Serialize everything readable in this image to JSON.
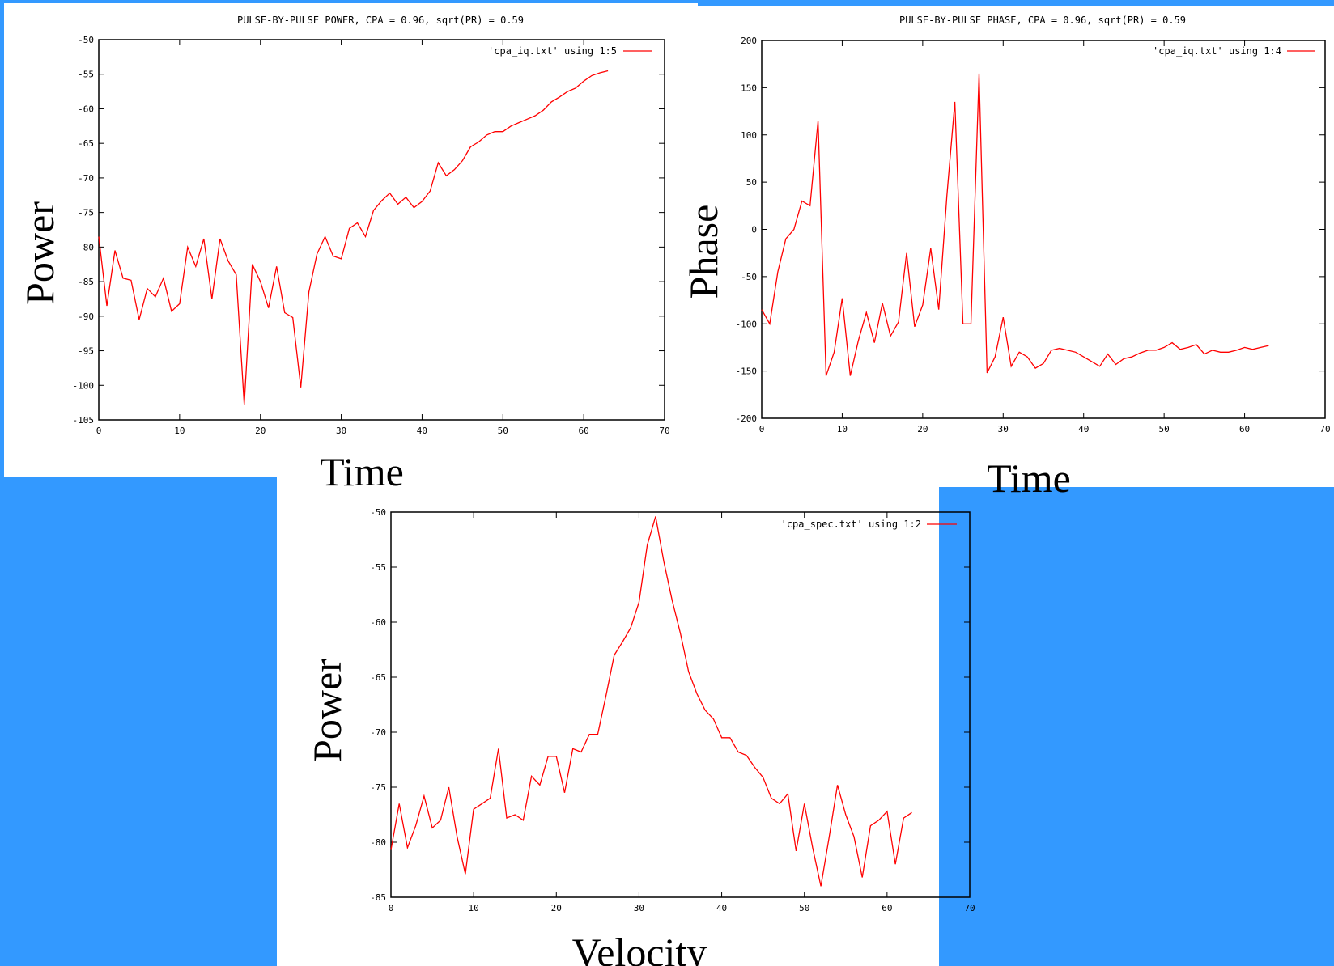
{
  "colors": {
    "background": "#3399ff",
    "panel": "#ffffff",
    "line": "#ff0000",
    "axis": "#000000"
  },
  "chart_data": [
    {
      "type": "line",
      "title": "PULSE-BY-PULSE POWER, CPA = 0.96, sqrt(PR) = 0.59",
      "xlabel": "Time",
      "ylabel": "Power",
      "xlim": [
        0,
        70
      ],
      "ylim": [
        -105,
        -50
      ],
      "xticks": [
        0,
        10,
        20,
        30,
        40,
        50,
        60,
        70
      ],
      "yticks": [
        -50,
        -55,
        -60,
        -65,
        -70,
        -75,
        -80,
        -85,
        -90,
        -95,
        -100,
        -105
      ],
      "grid": false,
      "legend_position": "top-right",
      "series": [
        {
          "name": "'cpa_iq.txt' using 1:5",
          "x": [
            0,
            1,
            2,
            3,
            4,
            5,
            6,
            7,
            8,
            9,
            10,
            11,
            12,
            13,
            14,
            15,
            16,
            17,
            18,
            19,
            20,
            21,
            22,
            23,
            24,
            25,
            26,
            27,
            28,
            29,
            30,
            31,
            32,
            33,
            34,
            35,
            36,
            37,
            38,
            39,
            40,
            41,
            42,
            43,
            44,
            45,
            46,
            47,
            48,
            49,
            50,
            51,
            52,
            53,
            54,
            55,
            56,
            57,
            58,
            59,
            60,
            61,
            62,
            63
          ],
          "y": [
            -78.5,
            -88.5,
            -80.5,
            -84.5,
            -84.8,
            -90.5,
            -86,
            -87.2,
            -84.5,
            -89.3,
            -88.2,
            -80,
            -82.8,
            -78.8,
            -87.5,
            -78.8,
            -82,
            -84,
            -102.8,
            -82.5,
            -85,
            -88.8,
            -82.8,
            -89.5,
            -90.2,
            -100.3,
            -86.5,
            -81,
            -78.5,
            -81.3,
            -81.7,
            -77.3,
            -76.5,
            -78.5,
            -74.7,
            -73.3,
            -72.2,
            -73.8,
            -72.8,
            -74.3,
            -73.4,
            -71.9,
            -67.8,
            -69.7,
            -68.8,
            -67.5,
            -65.5,
            -64.8,
            -63.8,
            -63.3,
            -63.3,
            -62.5,
            -62,
            -61.5,
            -61,
            -60.2,
            -59,
            -58.3,
            -57.5,
            -57,
            -56,
            -55.2,
            -54.8,
            -54.5
          ]
        }
      ]
    },
    {
      "type": "line",
      "title": "PULSE-BY-PULSE PHASE, CPA = 0.96, sqrt(PR) = 0.59",
      "xlabel": "Time",
      "ylabel": "Phase",
      "xlim": [
        0,
        70
      ],
      "ylim": [
        -200,
        200
      ],
      "xticks": [
        0,
        10,
        20,
        30,
        40,
        50,
        60,
        70
      ],
      "yticks": [
        200,
        150,
        100,
        50,
        0,
        -50,
        -100,
        -150,
        -200
      ],
      "grid": false,
      "legend_position": "top-right",
      "series": [
        {
          "name": "'cpa_iq.txt' using 1:4",
          "x": [
            0,
            1,
            2,
            3,
            4,
            5,
            6,
            7,
            8,
            9,
            10,
            11,
            12,
            13,
            14,
            15,
            16,
            17,
            18,
            19,
            20,
            21,
            22,
            23,
            24,
            25,
            26,
            27,
            28,
            29,
            30,
            31,
            32,
            33,
            34,
            35,
            36,
            37,
            38,
            39,
            40,
            41,
            42,
            43,
            44,
            45,
            46,
            47,
            48,
            49,
            50,
            51,
            52,
            53,
            54,
            55,
            56,
            57,
            58,
            59,
            60,
            61,
            62,
            63
          ],
          "y": [
            -85,
            -100,
            -45,
            -10,
            0,
            30,
            25,
            115,
            -155,
            -130,
            -73,
            -155,
            -118,
            -88,
            -120,
            -78,
            -113,
            -98,
            -25,
            -103,
            -80,
            -20,
            -85,
            35,
            135,
            -100,
            -100,
            165,
            -152,
            -135,
            -93,
            -145,
            -130,
            -135,
            -147,
            -142,
            -128,
            -126,
            -128,
            -130,
            -135,
            -140,
            -145,
            -132,
            -143,
            -137,
            -135,
            -131,
            -128,
            -128,
            -125,
            -120,
            -127,
            -125,
            -122,
            -132,
            -128,
            -130,
            -130,
            -128,
            -125,
            -127,
            -125,
            -123
          ]
        }
      ]
    },
    {
      "type": "line",
      "title": "",
      "xlabel": "Velocity",
      "ylabel": "Power",
      "xlim": [
        0,
        70
      ],
      "ylim": [
        -85,
        -50
      ],
      "xticks": [
        0,
        10,
        20,
        30,
        40,
        50,
        60,
        70
      ],
      "yticks": [
        -50,
        -55,
        -60,
        -65,
        -70,
        -75,
        -80,
        -85
      ],
      "grid": false,
      "legend_position": "top-right",
      "series": [
        {
          "name": "'cpa_spec.txt' using 1:2",
          "x": [
            0,
            1,
            2,
            3,
            4,
            5,
            6,
            7,
            8,
            9,
            10,
            11,
            12,
            13,
            14,
            15,
            16,
            17,
            18,
            19,
            20,
            21,
            22,
            23,
            24,
            25,
            26,
            27,
            28,
            29,
            30,
            31,
            32,
            33,
            34,
            35,
            36,
            37,
            38,
            39,
            40,
            41,
            42,
            43,
            44,
            45,
            46,
            47,
            48,
            49,
            50,
            51,
            52,
            53,
            54,
            55,
            56,
            57,
            58,
            59,
            60,
            61,
            62,
            63
          ],
          "y": [
            -80.7,
            -76.5,
            -80.5,
            -78.5,
            -75.8,
            -78.7,
            -78,
            -75,
            -79.5,
            -82.9,
            -77,
            -76.5,
            -76,
            -71.5,
            -77.8,
            -77.5,
            -78,
            -74,
            -74.8,
            -72.2,
            -72.2,
            -75.5,
            -71.5,
            -71.8,
            -70.2,
            -70.2,
            -66.7,
            -63,
            -61.8,
            -60.5,
            -58.2,
            -53,
            -50.4,
            -54.5,
            -58,
            -61,
            -64.5,
            -66.5,
            -68,
            -68.8,
            -70.5,
            -70.5,
            -71.8,
            -72.1,
            -73.2,
            -74.1,
            -76,
            -76.5,
            -75.6,
            -80.8,
            -76.5,
            -80.5,
            -84,
            -79.5,
            -74.8,
            -77.5,
            -79.5,
            -83.2,
            -78.5,
            -78,
            -77.2,
            -82,
            -77.8,
            -77.3
          ]
        }
      ]
    }
  ]
}
